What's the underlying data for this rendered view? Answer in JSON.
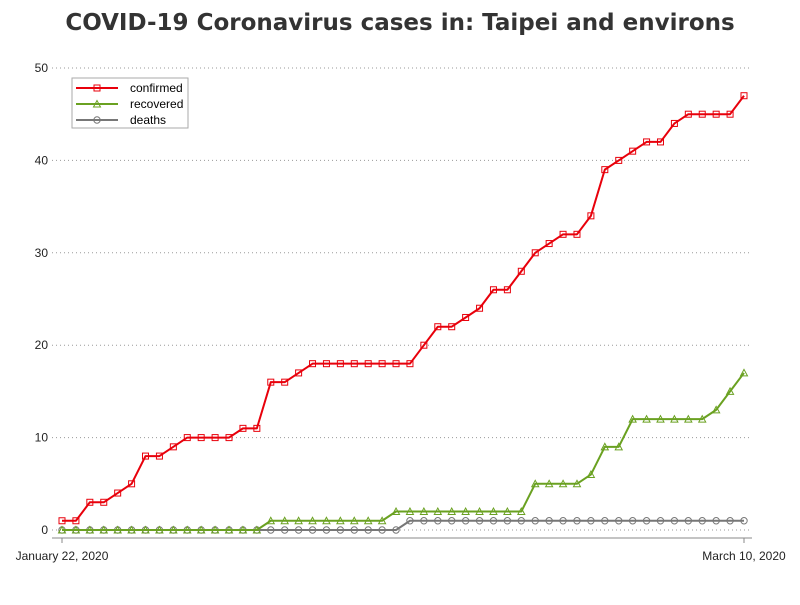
{
  "chart_data": {
    "type": "line",
    "title": "COVID-19 Coronavirus cases in: Taipei and environs",
    "xlabel": "",
    "ylabel": "",
    "x_start_label": "January 22, 2020",
    "x_end_label": "March 10, 2020",
    "ylim": [
      0,
      50
    ],
    "yticks": [
      0,
      10,
      20,
      30,
      40,
      50
    ],
    "grid": "horizontal dotted",
    "legend_position": "top-left",
    "series": [
      {
        "name": "confirmed",
        "color": "#e8000b",
        "marker": "square",
        "values": [
          1,
          1,
          3,
          3,
          4,
          5,
          8,
          8,
          9,
          10,
          10,
          10,
          10,
          11,
          11,
          16,
          16,
          17,
          18,
          18,
          18,
          18,
          18,
          18,
          18,
          18,
          20,
          22,
          22,
          23,
          24,
          26,
          26,
          28,
          30,
          31,
          32,
          32,
          34,
          39,
          40,
          41,
          42,
          42,
          44,
          45,
          45,
          45,
          45,
          47
        ]
      },
      {
        "name": "recovered",
        "color": "#6aa121",
        "marker": "triangle",
        "values": [
          0,
          0,
          0,
          0,
          0,
          0,
          0,
          0,
          0,
          0,
          0,
          0,
          0,
          0,
          0,
          1,
          1,
          1,
          1,
          1,
          1,
          1,
          1,
          1,
          2,
          2,
          2,
          2,
          2,
          2,
          2,
          2,
          2,
          2,
          5,
          5,
          5,
          5,
          6,
          9,
          9,
          12,
          12,
          12,
          12,
          12,
          12,
          13,
          15,
          17
        ]
      },
      {
        "name": "deaths",
        "color": "#777777",
        "marker": "circle",
        "values": [
          0,
          0,
          0,
          0,
          0,
          0,
          0,
          0,
          0,
          0,
          0,
          0,
          0,
          0,
          0,
          0,
          0,
          0,
          0,
          0,
          0,
          0,
          0,
          0,
          0,
          1,
          1,
          1,
          1,
          1,
          1,
          1,
          1,
          1,
          1,
          1,
          1,
          1,
          1,
          1,
          1,
          1,
          1,
          1,
          1,
          1,
          1,
          1,
          1,
          1
        ]
      }
    ]
  }
}
